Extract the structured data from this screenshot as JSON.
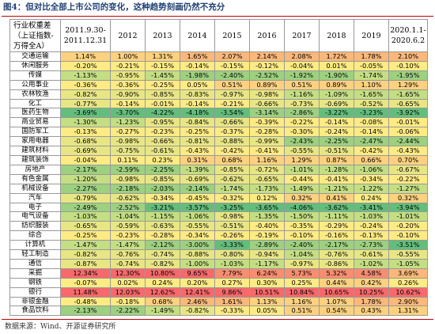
{
  "title": "图4：但对比全部上市公司的变化，这种趋势刻画仍然不充分",
  "source": "数据来源：Wind、开源证券研究所",
  "header": {
    "industry_lines": [
      "行业权重差",
      "（上证指数-",
      "万得全A）"
    ],
    "periods": [
      [
        "2011.9.30-",
        "2011.12.31"
      ],
      [
        "2012"
      ],
      [
        "2013"
      ],
      [
        "2014"
      ],
      [
        "2015"
      ],
      [
        "2016"
      ],
      [
        "2017"
      ],
      [
        "2018"
      ],
      [
        "2019"
      ],
      [
        "2020.1.1-",
        "2020.6.2"
      ]
    ]
  },
  "colors": {
    "g4": "#63be7b",
    "g3": "#9dd07f",
    "g2": "#c4de83",
    "g1": "#e8e684",
    "y": "#ffeb84",
    "o1": "#fdd17f",
    "o2": "#fbb87a",
    "r1": "#f98d70",
    "r2": "#f8696b"
  },
  "rows": [
    {
      "name": "交通运输",
      "values": [
        "1.14%",
        "1.00%",
        "1.31%",
        "1.65%",
        "2.07%",
        "2.14%",
        "2.08%",
        "1.72%",
        "1.78%",
        "2.10%"
      ]
    },
    {
      "name": "休闲服务",
      "values": [
        "-0.20%",
        "-0.21%",
        "-0.15%",
        "-0.14%",
        "-0.15%",
        "-0.12%",
        "-0.04%",
        "0.01%",
        "-0.05%",
        "-0.10%"
      ]
    },
    {
      "name": "传媒",
      "values": [
        "-1.13%",
        "-0.95%",
        "-1.45%",
        "-1.98%",
        "-2.40%",
        "-2.52%",
        "-1.92%",
        "-1.90%",
        "-1.74%",
        "-1.95%"
      ]
    },
    {
      "name": "公用事业",
      "values": [
        "-0.36%",
        "-0.36%",
        "-0.25%",
        "0.05%",
        "0.51%",
        "0.89%",
        "0.51%",
        "0.89%",
        "1.10%",
        "1.29%"
      ]
    },
    {
      "name": "农林牧渔",
      "values": [
        "-0.82%",
        "-0.90%",
        "-0.85%",
        "-0.83%",
        "-0.97%",
        "-0.98%",
        "-1.16%",
        "-1.09%",
        "-1.65%",
        "-1.65%"
      ]
    },
    {
      "name": "化工",
      "values": [
        "-0.77%",
        "-0.14%",
        "-0.01%",
        "-0.14%",
        "-0.21%",
        "-0.66%",
        "-0.73%",
        "-0.69%",
        "-0.52%",
        "-0.65%"
      ]
    },
    {
      "name": "医药生物",
      "values": [
        "-3.69%",
        "-3.70%",
        "-4.22%",
        "-4.18%",
        "-3.54%",
        "-3.14%",
        "-2.86%",
        "-3.22%",
        "-3.23%",
        "-3.92%"
      ]
    },
    {
      "name": "商业贸易",
      "values": [
        "-1.30%",
        "-1.23%",
        "-0.95%",
        "-0.84%",
        "-0.66%",
        "-0.39%",
        "-0.22%",
        "-0.14%",
        "-0.08%",
        "-0.01%"
      ]
    },
    {
      "name": "国防军工",
      "values": [
        "-0.13%",
        "-0.27%",
        "-0.23%",
        "-0.25%",
        "-0.37%",
        "-0.28%",
        "-0.30%",
        "-0.24%",
        "-0.14%",
        "-0.06%"
      ]
    },
    {
      "name": "家用电器",
      "values": [
        "-0.68%",
        "-0.98%",
        "-0.66%",
        "-0.81%",
        "-0.88%",
        "-0.99%",
        "-2.43%",
        "-2.25%",
        "-2.47%",
        "-2.44%"
      ]
    },
    {
      "name": "建筑材料",
      "values": [
        "-0.69%",
        "-0.75%",
        "-0.61%",
        "-0.43%",
        "-0.42%",
        "-0.41%",
        "-0.55%",
        "-0.51%",
        "-0.42%",
        "-0.43%"
      ]
    },
    {
      "name": "建筑装饰",
      "values": [
        "-0.04%",
        "0.11%",
        "0.23%",
        "0.31%",
        "0.68%",
        "1.16%",
        "1.29%",
        "0.87%",
        "0.66%",
        "0.70%"
      ]
    },
    {
      "name": "房地产",
      "values": [
        "-2.17%",
        "-2.59%",
        "-2.25%",
        "-1.39%",
        "-0.85%",
        "-0.72%",
        "-1.01%",
        "-1.28%",
        "-1.06%",
        "-0.67%"
      ]
    },
    {
      "name": "有色金属",
      "values": [
        "-1.20%",
        "-0.98%",
        "-0.85%",
        "-0.69%",
        "-0.62%",
        "-0.65%",
        "-0.44%",
        "-0.41%",
        "-0.34%",
        "-0.22%"
      ]
    },
    {
      "name": "机械设备",
      "values": [
        "-2.27%",
        "-2.18%",
        "-2.03%",
        "-2.14%",
        "-1.74%",
        "-1.73%",
        "-1.49%",
        "-1.21%",
        "-1.22%",
        "-1.27%"
      ]
    },
    {
      "name": "汽车",
      "values": [
        "-0.79%",
        "-0.62%",
        "-0.34%",
        "-0.45%",
        "-0.32%",
        "0.12%",
        "0.32%",
        "0.41%",
        "0.24%",
        "0.32%"
      ]
    },
    {
      "name": "电子",
      "values": [
        "-2.49%",
        "-2.52%",
        "-3.21%",
        "-3.57%",
        "-3.25%",
        "-3.65%",
        "-4.06%",
        "-3.62%",
        "-3.41%",
        "-3.94%"
      ]
    },
    {
      "name": "电气设备",
      "values": [
        "-1.03%",
        "-1.04%",
        "-1.15%",
        "-1.06%",
        "-0.98%",
        "-1.35%",
        "-1.50%",
        "-1.11%",
        "-1.03%",
        "-1.01%"
      ]
    },
    {
      "name": "纺织服装",
      "values": [
        "-0.65%",
        "-0.59%",
        "-0.63%",
        "-0.55%",
        "-0.51%",
        "-0.40%",
        "-0.35%",
        "-0.29%",
        "-0.24%",
        "-0.20%"
      ]
    },
    {
      "name": "综合",
      "values": [
        "-0.25%",
        "-0.23%",
        "-0.28%",
        "-0.34%",
        "-0.26%",
        "-0.19%",
        "-0.10%",
        "-0.16%",
        "-0.13%",
        "-0.10%"
      ]
    },
    {
      "name": "计算机",
      "values": [
        "-1.47%",
        "-1.47%",
        "-2.12%",
        "-3.00%",
        "-3.33%",
        "-2.89%",
        "-2.40%",
        "-2.17%",
        "-2.73%",
        "-3.51%"
      ]
    },
    {
      "name": "轻工制造",
      "values": [
        "-0.82%",
        "-0.76%",
        "-0.74%",
        "-0.88%",
        "-0.80%",
        "-0.94%",
        "-1.04%",
        "-0.76%",
        "-0.61%",
        "-0.55%"
      ]
    },
    {
      "name": "通信",
      "values": [
        "-0.87%",
        "-0.74%",
        "-0.82%",
        "-1.00%",
        "-1.03%",
        "-1.17%",
        "-0.97%",
        "-0.86%",
        "-1.02%",
        "-1.05%"
      ]
    },
    {
      "name": "采掘",
      "values": [
        "12.34%",
        "12.30%",
        "10.80%",
        "9.65%",
        "7.79%",
        "6.24%",
        "5.73%",
        "5.32%",
        "4.58%",
        "3.69%"
      ]
    },
    {
      "name": "钢铁",
      "values": [
        "-0.07%",
        "0.02%",
        "0.24%",
        "0.20%",
        "0.27%",
        "0.30%",
        "0.25%",
        "0.44%",
        "0.42%",
        "0.26%"
      ]
    },
    {
      "name": "银行",
      "values": [
        "11.48%",
        "12.03%",
        "12.62%",
        "12.41%",
        "9.86%",
        "10.51%",
        "10.84%",
        "10.65%",
        "10.25%",
        "10.62%"
      ]
    },
    {
      "name": "非银金融",
      "values": [
        "-0.48%",
        "-0.18%",
        "0.68%",
        "2.46%",
        "1.61%",
        "1.13%",
        "1.16%",
        "1.07%",
        "1.78%",
        "2.90%"
      ]
    },
    {
      "name": "食品饮料",
      "values": [
        "-2.13%",
        "-2.22%",
        "-1.49%",
        "-0.82%",
        "-0.33%",
        "0.05%",
        "0.51%",
        "0.54%",
        "0.43%",
        "1.31%"
      ]
    }
  ]
}
